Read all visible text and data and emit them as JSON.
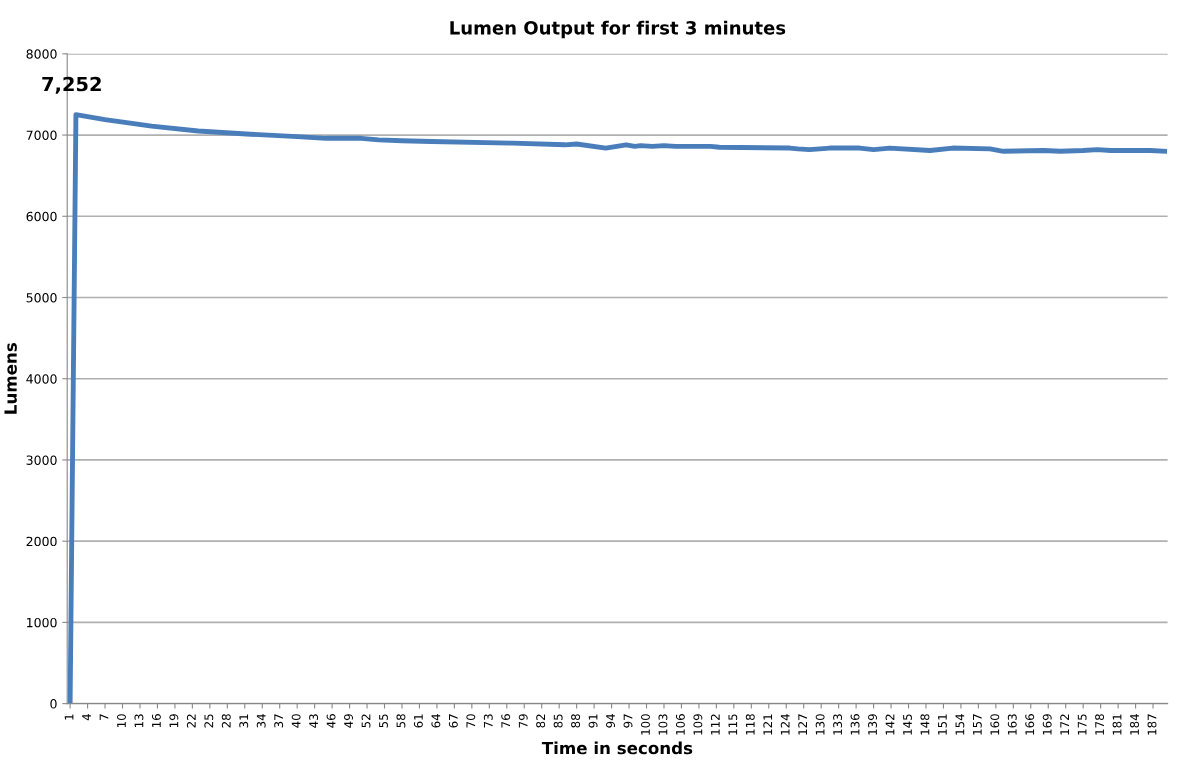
{
  "chart_data": {
    "type": "line",
    "title": "Lumen Output for first 3 minutes",
    "xlabel": "Time in seconds",
    "ylabel": "Lumens",
    "series": [
      {
        "color": "#4a7ebb",
        "x": [
          1,
          2,
          7,
          15,
          23,
          32,
          40,
          45,
          51,
          54,
          58,
          63,
          77,
          86,
          88,
          93,
          96.5,
          98,
          99,
          101,
          103,
          105,
          111,
          112.5,
          124.6,
          126,
          128,
          131.5,
          136.6,
          139,
          141.8,
          148.7,
          152.6,
          159,
          161.3,
          168.2,
          171.1,
          175,
          177.4,
          179.7,
          186.5,
          189
        ],
        "values": [
          0,
          7252,
          7190,
          7110,
          7050,
          7010,
          6980,
          6960,
          6960,
          6940,
          6930,
          6920,
          6900,
          6880,
          6890,
          6840,
          6880,
          6860,
          6870,
          6860,
          6870,
          6860,
          6860,
          6850,
          6840,
          6830,
          6820,
          6840,
          6840,
          6820,
          6840,
          6810,
          6840,
          6830,
          6800,
          6810,
          6800,
          6810,
          6820,
          6810,
          6810,
          6800
        ]
      }
    ],
    "annotations": [
      {
        "text": "7,252",
        "x": 2,
        "y": 7252
      }
    ],
    "xlim": [
      0.5,
      189.5
    ],
    "xticks": [
      1,
      4,
      7,
      10,
      13,
      16,
      19,
      22,
      25,
      28,
      31,
      34,
      37,
      40,
      43,
      46,
      49,
      52,
      55,
      58,
      61,
      64,
      67,
      70,
      73,
      76,
      79,
      82,
      85,
      88,
      91,
      94,
      97,
      100,
      103,
      106,
      109,
      112,
      115,
      118,
      121,
      124,
      127,
      130,
      133,
      136,
      139,
      142,
      145,
      148,
      151,
      154,
      157,
      160,
      163,
      166,
      169,
      172,
      175,
      178,
      181,
      184,
      187
    ],
    "ylim": [
      0,
      8000
    ],
    "yticks": [
      0,
      1000,
      2000,
      3000,
      4000,
      5000,
      6000,
      7000,
      8000
    ],
    "grid": "y",
    "marker": "none",
    "line_style": "solid"
  }
}
